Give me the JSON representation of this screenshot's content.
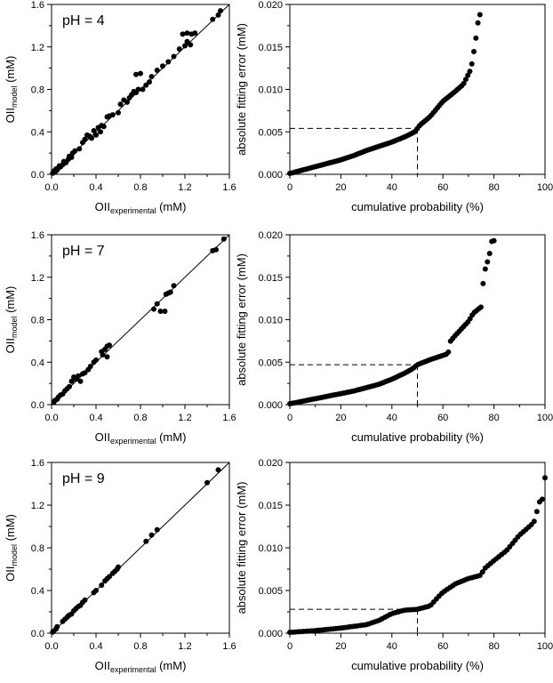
{
  "chart_data": [
    {
      "type": "scatter",
      "panel_label": "pH = 4",
      "xlabel": {
        "main": "OII",
        "sub": "experimental",
        "unit": " (mM)"
      },
      "ylabel": {
        "main": "OII",
        "sub": "model",
        "unit": " (mM)"
      },
      "xlim": [
        0,
        1.6
      ],
      "ylim": [
        0,
        1.6
      ],
      "x_ticks": [
        "0.0",
        "0.4",
        "0.8",
        "1.2",
        "1.6"
      ],
      "y_ticks": [
        "0.0",
        "0.4",
        "0.8",
        "1.2",
        "1.6"
      ],
      "reference_line": {
        "x": [
          0,
          1.6
        ],
        "y": [
          0,
          1.6
        ]
      },
      "points": [
        [
          0.01,
          0.01
        ],
        [
          0.02,
          0.03
        ],
        [
          0.03,
          0.02
        ],
        [
          0.04,
          0.05
        ],
        [
          0.05,
          0.04
        ],
        [
          0.06,
          0.06
        ],
        [
          0.07,
          0.08
        ],
        [
          0.08,
          0.07
        ],
        [
          0.1,
          0.09
        ],
        [
          0.11,
          0.12
        ],
        [
          0.13,
          0.11
        ],
        [
          0.15,
          0.14
        ],
        [
          0.16,
          0.17
        ],
        [
          0.18,
          0.16
        ],
        [
          0.19,
          0.2
        ],
        [
          0.21,
          0.22
        ],
        [
          0.25,
          0.24
        ],
        [
          0.28,
          0.3
        ],
        [
          0.3,
          0.33
        ],
        [
          0.32,
          0.37
        ],
        [
          0.34,
          0.36
        ],
        [
          0.36,
          0.34
        ],
        [
          0.38,
          0.41
        ],
        [
          0.4,
          0.37
        ],
        [
          0.42,
          0.44
        ],
        [
          0.44,
          0.4
        ],
        [
          0.45,
          0.46
        ],
        [
          0.47,
          0.45
        ],
        [
          0.5,
          0.54
        ],
        [
          0.52,
          0.55
        ],
        [
          0.55,
          0.56
        ],
        [
          0.6,
          0.58
        ],
        [
          0.62,
          0.66
        ],
        [
          0.65,
          0.7
        ],
        [
          0.68,
          0.68
        ],
        [
          0.7,
          0.72
        ],
        [
          0.72,
          0.75
        ],
        [
          0.74,
          0.78
        ],
        [
          0.76,
          0.77
        ],
        [
          0.78,
          0.8
        ],
        [
          0.76,
          0.94
        ],
        [
          0.8,
          0.95
        ],
        [
          0.82,
          0.8
        ],
        [
          0.85,
          0.84
        ],
        [
          0.88,
          0.87
        ],
        [
          0.9,
          0.92
        ],
        [
          0.95,
          0.98
        ],
        [
          1.0,
          1.02
        ],
        [
          1.05,
          1.06
        ],
        [
          1.1,
          1.11
        ],
        [
          1.15,
          1.18
        ],
        [
          1.2,
          1.21
        ],
        [
          1.22,
          1.25
        ],
        [
          1.25,
          1.22
        ],
        [
          1.18,
          1.32
        ],
        [
          1.22,
          1.33
        ],
        [
          1.26,
          1.32
        ],
        [
          1.29,
          1.33
        ],
        [
          1.45,
          1.46
        ],
        [
          1.5,
          1.5
        ],
        [
          1.52,
          1.54
        ]
      ]
    },
    {
      "type": "scatter",
      "panel_label": "",
      "xlabel": "cumulative probability (%)",
      "ylabel": "absolute fitting error (mM)",
      "xlim": [
        0,
        100
      ],
      "ylim": [
        0,
        0.02
      ],
      "x_ticks": [
        "0",
        "20",
        "40",
        "60",
        "80",
        "100"
      ],
      "y_ticks": [
        "0.000",
        "0.005",
        "0.010",
        "0.015",
        "0.020"
      ],
      "reference_guides": {
        "x": 50,
        "y": 0.0054
      },
      "curve_anchors": [
        [
          0,
          0.0001
        ],
        [
          5,
          0.0005
        ],
        [
          10,
          0.0009
        ],
        [
          15,
          0.0013
        ],
        [
          20,
          0.0017
        ],
        [
          25,
          0.0022
        ],
        [
          30,
          0.0028
        ],
        [
          35,
          0.0033
        ],
        [
          40,
          0.0038
        ],
        [
          45,
          0.0044
        ],
        [
          49,
          0.005
        ],
        [
          50,
          0.0054
        ],
        [
          51,
          0.0058
        ],
        [
          55,
          0.0068
        ],
        [
          60,
          0.0086
        ],
        [
          65,
          0.0098
        ],
        [
          68,
          0.0106
        ],
        [
          70,
          0.0118
        ],
        [
          71,
          0.0124
        ],
        [
          72,
          0.0142
        ],
        [
          73,
          0.0162
        ],
        [
          74,
          0.0185
        ],
        [
          74.5,
          0.0188
        ]
      ]
    },
    {
      "type": "scatter",
      "panel_label": "pH = 7",
      "xlabel": {
        "main": "OII",
        "sub": "experimental",
        "unit": " (mM)"
      },
      "ylabel": {
        "main": "OII",
        "sub": "model",
        "unit": " (mM)"
      },
      "xlim": [
        0,
        1.6
      ],
      "ylim": [
        0,
        1.6
      ],
      "x_ticks": [
        "0.0",
        "0.4",
        "0.8",
        "1.2",
        "1.6"
      ],
      "y_ticks": [
        "0.0",
        "0.4",
        "0.8",
        "1.2",
        "1.6"
      ],
      "reference_line": {
        "x": [
          0,
          1.6
        ],
        "y": [
          0,
          1.6
        ]
      },
      "points": [
        [
          0.02,
          0.02
        ],
        [
          0.03,
          0.04
        ],
        [
          0.05,
          0.05
        ],
        [
          0.06,
          0.07
        ],
        [
          0.08,
          0.09
        ],
        [
          0.1,
          0.1
        ],
        [
          0.12,
          0.13
        ],
        [
          0.14,
          0.15
        ],
        [
          0.16,
          0.17
        ],
        [
          0.18,
          0.22
        ],
        [
          0.2,
          0.26
        ],
        [
          0.22,
          0.24
        ],
        [
          0.24,
          0.27
        ],
        [
          0.26,
          0.22
        ],
        [
          0.28,
          0.29
        ],
        [
          0.3,
          0.3
        ],
        [
          0.33,
          0.33
        ],
        [
          0.35,
          0.36
        ],
        [
          0.38,
          0.4
        ],
        [
          0.4,
          0.42
        ],
        [
          0.45,
          0.5
        ],
        [
          0.46,
          0.47
        ],
        [
          0.48,
          0.52
        ],
        [
          0.5,
          0.55
        ],
        [
          0.52,
          0.56
        ],
        [
          0.5,
          0.45
        ],
        [
          0.92,
          0.9
        ],
        [
          0.95,
          0.95
        ],
        [
          0.98,
          0.88
        ],
        [
          1.02,
          0.88
        ],
        [
          1.03,
          1.04
        ],
        [
          1.05,
          1.05
        ],
        [
          1.07,
          1.06
        ],
        [
          1.1,
          1.12
        ],
        [
          1.45,
          1.45
        ],
        [
          1.48,
          1.46
        ],
        [
          1.55,
          1.56
        ]
      ]
    },
    {
      "type": "scatter",
      "panel_label": "",
      "xlabel": "cumulative probability (%)",
      "ylabel": "absolute fitting error (mM)",
      "xlim": [
        0,
        100
      ],
      "ylim": [
        0,
        0.02
      ],
      "x_ticks": [
        "0",
        "20",
        "40",
        "60",
        "80",
        "100"
      ],
      "y_ticks": [
        "0.000",
        "0.005",
        "0.010",
        "0.015",
        "0.020"
      ],
      "reference_guides": {
        "x": 50,
        "y": 0.0047
      },
      "curve_anchors": [
        [
          0,
          0.0001
        ],
        [
          5,
          0.0004
        ],
        [
          10,
          0.0007
        ],
        [
          15,
          0.001
        ],
        [
          20,
          0.0013
        ],
        [
          25,
          0.0016
        ],
        [
          30,
          0.002
        ],
        [
          35,
          0.0024
        ],
        [
          40,
          0.003
        ],
        [
          45,
          0.0037
        ],
        [
          48,
          0.0042
        ],
        [
          50,
          0.0047
        ],
        [
          55,
          0.0053
        ],
        [
          60,
          0.0058
        ],
        [
          62,
          0.006
        ],
        [
          63,
          0.0075
        ],
        [
          65,
          0.0082
        ],
        [
          70,
          0.0098
        ],
        [
          72,
          0.0108
        ],
        [
          75,
          0.0115
        ],
        [
          76,
          0.0152
        ],
        [
          77,
          0.0165
        ],
        [
          78,
          0.0172
        ],
        [
          79,
          0.0192
        ],
        [
          80,
          0.0193
        ]
      ]
    },
    {
      "type": "scatter",
      "panel_label": "pH = 9",
      "xlabel": {
        "main": "OII",
        "sub": "experimental",
        "unit": " (mM)"
      },
      "ylabel": {
        "main": "OII",
        "sub": "model",
        "unit": " (mM)"
      },
      "xlim": [
        0,
        1.6
      ],
      "ylim": [
        0,
        1.6
      ],
      "x_ticks": [
        "0.0",
        "0.4",
        "0.8",
        "1.2",
        "1.6"
      ],
      "y_ticks": [
        "0.0",
        "0.4",
        "0.8",
        "1.2",
        "1.6"
      ],
      "reference_line": {
        "x": [
          0,
          1.6
        ],
        "y": [
          0,
          1.6
        ]
      },
      "points": [
        [
          0.01,
          0.01
        ],
        [
          0.02,
          0.02
        ],
        [
          0.04,
          0.04
        ],
        [
          0.05,
          0.06
        ],
        [
          0.1,
          0.11
        ],
        [
          0.12,
          0.13
        ],
        [
          0.14,
          0.15
        ],
        [
          0.15,
          0.16
        ],
        [
          0.16,
          0.17
        ],
        [
          0.18,
          0.18
        ],
        [
          0.2,
          0.21
        ],
        [
          0.22,
          0.23
        ],
        [
          0.24,
          0.25
        ],
        [
          0.26,
          0.26
        ],
        [
          0.28,
          0.29
        ],
        [
          0.3,
          0.31
        ],
        [
          0.38,
          0.38
        ],
        [
          0.4,
          0.4
        ],
        [
          0.45,
          0.45
        ],
        [
          0.48,
          0.49
        ],
        [
          0.5,
          0.51
        ],
        [
          0.52,
          0.53
        ],
        [
          0.55,
          0.56
        ],
        [
          0.57,
          0.58
        ],
        [
          0.59,
          0.6
        ],
        [
          0.6,
          0.62
        ],
        [
          0.85,
          0.86
        ],
        [
          0.9,
          0.92
        ],
        [
          0.95,
          0.97
        ],
        [
          1.4,
          1.41
        ],
        [
          1.5,
          1.53
        ]
      ]
    },
    {
      "type": "scatter",
      "panel_label": "",
      "xlabel": "cumulative probability (%)",
      "ylabel": "absolute fitting error (mM)",
      "xlim": [
        0,
        100
      ],
      "ylim": [
        0,
        0.02
      ],
      "x_ticks": [
        "0",
        "20",
        "40",
        "60",
        "80",
        "100"
      ],
      "y_ticks": [
        "0.000",
        "0.005",
        "0.010",
        "0.015",
        "0.020"
      ],
      "reference_guides": {
        "x": 50,
        "y": 0.0028
      },
      "curve_anchors": [
        [
          0,
          0.0001
        ],
        [
          10,
          0.0003
        ],
        [
          20,
          0.0006
        ],
        [
          30,
          0.001
        ],
        [
          35,
          0.0015
        ],
        [
          40,
          0.0023
        ],
        [
          45,
          0.0027
        ],
        [
          50,
          0.0028
        ],
        [
          55,
          0.0032
        ],
        [
          58,
          0.0042
        ],
        [
          60,
          0.0048
        ],
        [
          65,
          0.0058
        ],
        [
          70,
          0.0064
        ],
        [
          75,
          0.0068
        ],
        [
          76,
          0.0075
        ],
        [
          80,
          0.0085
        ],
        [
          85,
          0.0097
        ],
        [
          90,
          0.0115
        ],
        [
          92,
          0.012
        ],
        [
          95,
          0.0128
        ],
        [
          96,
          0.0132
        ],
        [
          97,
          0.0145
        ],
        [
          98,
          0.0155
        ],
        [
          99,
          0.0157
        ],
        [
          100,
          0.0182
        ]
      ]
    }
  ]
}
